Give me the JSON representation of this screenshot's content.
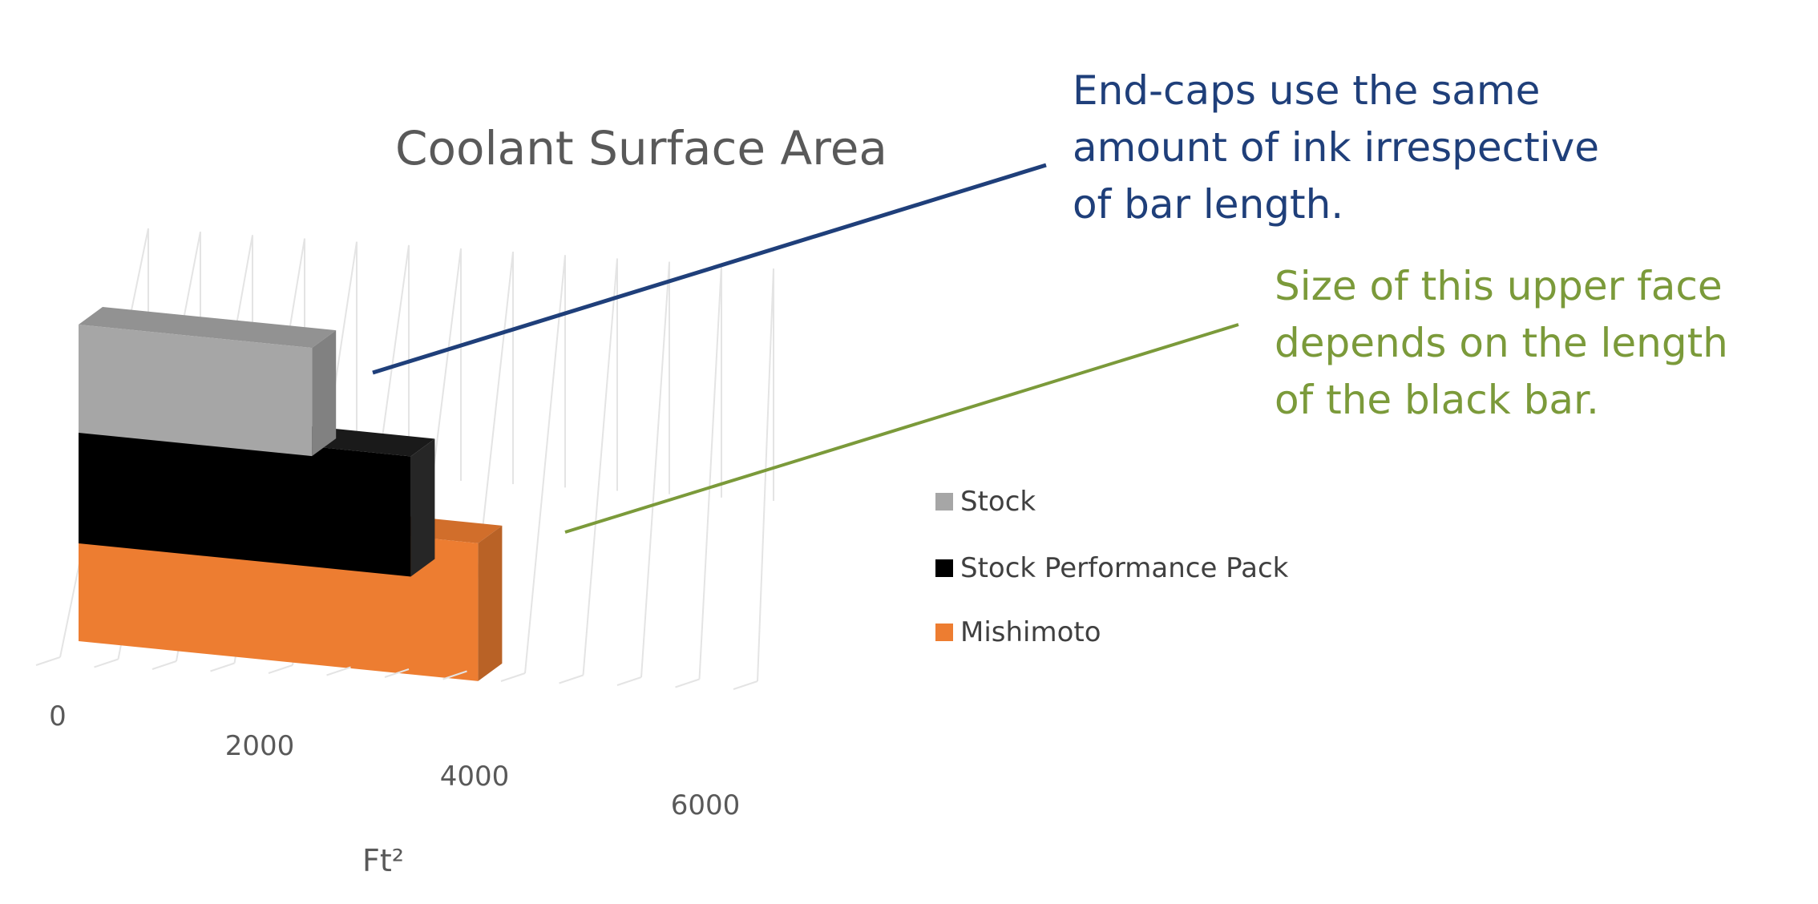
{
  "colors": {
    "stock": "#a6a6a6",
    "stock_performance_pack": "#000000",
    "mishimoto": "#ed7d31",
    "note_blue": "#1f3f7a",
    "note_green": "#7b9a3a"
  },
  "chart_data": {
    "type": "bar",
    "orientation": "horizontal",
    "style": "3d-stacked",
    "title": "Coolant Surface Area",
    "xlabel": "Ft²",
    "ylabel": "",
    "xlim": [
      0,
      6000
    ],
    "x_ticks": [
      "0",
      "2000",
      "4000",
      "6000"
    ],
    "grid": true,
    "legend_position": "right",
    "categories": [
      ""
    ],
    "series": [
      {
        "name": "Stock",
        "values": [
          2600
        ],
        "color": "#a6a6a6"
      },
      {
        "name": "Stock Performance Pack",
        "values": [
          3700
        ],
        "color": "#000000"
      },
      {
        "name": "Mishimoto",
        "values": [
          4450
        ],
        "color": "#ed7d31"
      }
    ]
  },
  "annotations": {
    "blue_note": {
      "lines": [
        "End-caps use the same",
        "amount of ink irrespective",
        "of bar length."
      ],
      "color": "#1f3f7a"
    },
    "green_note": {
      "lines": [
        "Size of this upper face",
        "depends on the length",
        "of the black bar."
      ],
      "color": "#7b9a3a"
    }
  }
}
